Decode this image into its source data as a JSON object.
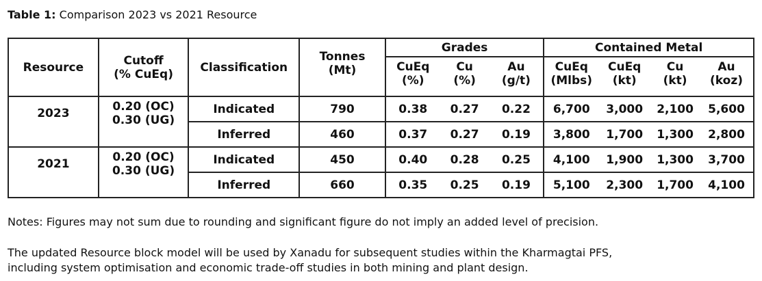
{
  "title": {
    "label": "Table 1:",
    "text": "Comparison 2023 vs 2021 Resource"
  },
  "headers": {
    "resource": "Resource",
    "cutoff_1": "Cutoff",
    "cutoff_2": "(% CuEq)",
    "classification": "Classification",
    "tonnes_1": "Tonnes",
    "tonnes_2": "(Mt)",
    "grades": "Grades",
    "contained": "Contained Metal",
    "sub": [
      [
        "CuEq",
        "(%)"
      ],
      [
        "Cu",
        "(%)"
      ],
      [
        "Au",
        "(g/t)"
      ],
      [
        "CuEq",
        "(Mlbs)"
      ],
      [
        "CuEq",
        "(kt)"
      ],
      [
        "Cu",
        "(kt)"
      ],
      [
        "Au",
        "(koz)"
      ]
    ]
  },
  "groups": [
    {
      "resource": "2023",
      "cutoff_1": "0.20 (OC)",
      "cutoff_2": "0.30 (UG)",
      "rows": [
        {
          "classification": "Indicated",
          "tonnes": "790",
          "values": [
            "0.38",
            "0.27",
            "0.22",
            "6,700",
            "3,000",
            "2,100",
            "5,600"
          ]
        },
        {
          "classification": "Inferred",
          "tonnes": "460",
          "values": [
            "0.37",
            "0.27",
            "0.19",
            "3,800",
            "1,700",
            "1,300",
            "2,800"
          ]
        }
      ]
    },
    {
      "resource": "2021",
      "cutoff_1": "0.20 (OC)",
      "cutoff_2": "0.30 (UG)",
      "rows": [
        {
          "classification": "Indicated",
          "tonnes": "450",
          "values": [
            "0.40",
            "0.28",
            "0.25",
            "4,100",
            "1,900",
            "1,300",
            "3,700"
          ]
        },
        {
          "classification": "Inferred",
          "tonnes": "660",
          "values": [
            "0.35",
            "0.25",
            "0.19",
            "5,100",
            "2,300",
            "1,700",
            "4,100"
          ]
        }
      ]
    }
  ],
  "notes": [
    "Notes: Figures may not sum due to rounding and significant figure do not imply an added level of precision.",
    "The updated Resource block model will be used by Xanadu for subsequent studies within the Kharmagtai PFS,",
    "including system optimisation and economic trade-off studies in both mining and plant design."
  ]
}
